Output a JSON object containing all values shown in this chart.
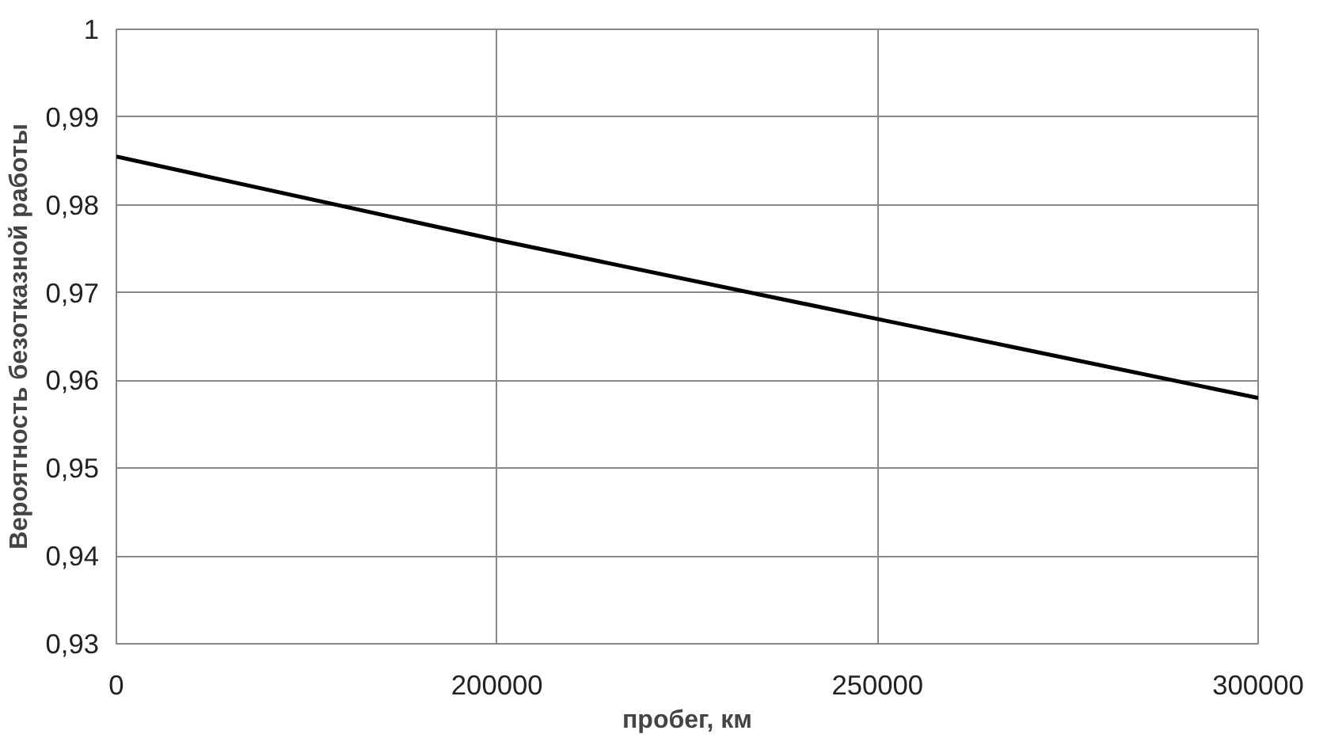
{
  "chart_data": {
    "type": "line",
    "xlabel": "пробег, км",
    "ylabel": "Вероятность безотказной работы",
    "categories": [
      "0",
      "200000",
      "250000",
      "300000"
    ],
    "series": [
      {
        "color": "#000000",
        "values": [
          0.9855,
          0.976,
          0.967,
          0.958
        ]
      }
    ],
    "ylim": [
      0.93,
      1
    ],
    "yticks": [
      {
        "value": 0.93,
        "label": "0,93"
      },
      {
        "value": 0.94,
        "label": "0,94"
      },
      {
        "value": 0.95,
        "label": "0,95"
      },
      {
        "value": 0.96,
        "label": "0,96"
      },
      {
        "value": 0.97,
        "label": "0,97"
      },
      {
        "value": 0.98,
        "label": "0,98"
      },
      {
        "value": 0.99,
        "label": "0,99"
      },
      {
        "value": 1,
        "label": "1"
      }
    ],
    "grid": true,
    "marker": "none",
    "line_style": "solid"
  }
}
